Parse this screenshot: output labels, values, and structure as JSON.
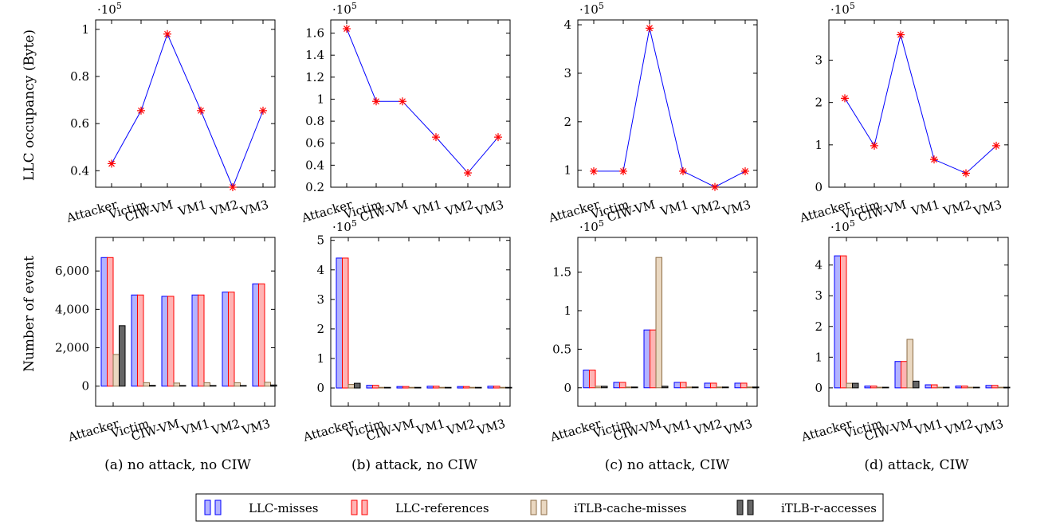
{
  "figure": {
    "ylabel_top": "LLC occupancy (Byte)",
    "ylabel_bottom": "Number of event",
    "panels": [
      {
        "caption": "(a) no attack, no CIW"
      },
      {
        "caption": "(b) attack, no CIW"
      },
      {
        "caption": "(c) no attack, CIW"
      },
      {
        "caption": "(d) attack, CIW"
      }
    ],
    "legend": [
      {
        "label": "LLC-misses",
        "fill": "#b3b3ff",
        "stroke": "#0000ff"
      },
      {
        "label": "LLC-references",
        "fill": "#ffb3b3",
        "stroke": "#ff0000"
      },
      {
        "label": "iTLB-cache-misses",
        "fill": "#ead8c1",
        "stroke": "#8c6d46"
      },
      {
        "label": "iTLB-r-accesses",
        "fill": "#666666",
        "stroke": "#000000"
      }
    ]
  },
  "chart_data": [
    {
      "type": "line",
      "panel": 0,
      "row": "top",
      "categories": [
        "Attacker",
        "Victim",
        "CIW-VM",
        "VM1",
        "VM2",
        "VM3"
      ],
      "values": [
        0.43,
        0.655,
        0.98,
        0.655,
        0.33,
        0.655
      ],
      "multiplier": "·10",
      "multiplier_exp": "5",
      "ylim": [
        0.33,
        1.04
      ],
      "yticks": [
        0.4,
        0.6,
        0.8,
        1
      ],
      "yticklabels": [
        "0.4",
        "0.6",
        "0.8",
        "1"
      ],
      "line_color": "#0000ff",
      "marker_color": "#ff0000"
    },
    {
      "type": "line",
      "panel": 1,
      "row": "top",
      "categories": [
        "Attacker",
        "Victim",
        "CIW-VM",
        "VM1",
        "VM2",
        "VM3"
      ],
      "values": [
        1.64,
        0.98,
        0.98,
        0.655,
        0.33,
        0.655
      ],
      "multiplier": "·10",
      "multiplier_exp": "5",
      "ylim": [
        0.2,
        1.72
      ],
      "yticks": [
        0.2,
        0.4,
        0.6,
        0.8,
        1,
        1.2,
        1.4,
        1.6
      ],
      "yticklabels": [
        "0.2",
        "0.4",
        "0.6",
        "0.8",
        "1",
        "1.2",
        "1.4",
        "1.6"
      ],
      "line_color": "#0000ff",
      "marker_color": "#ff0000"
    },
    {
      "type": "line",
      "panel": 2,
      "row": "top",
      "categories": [
        "Attacker",
        "Victim",
        "CIW-VM",
        "VM1",
        "VM2",
        "VM3"
      ],
      "values": [
        0.98,
        0.98,
        3.93,
        0.98,
        0.655,
        0.98
      ],
      "multiplier": "·10",
      "multiplier_exp": "5",
      "ylim": [
        0.65,
        4.1
      ],
      "yticks": [
        1,
        2,
        3,
        4
      ],
      "yticklabels": [
        "1",
        "2",
        "3",
        "4"
      ],
      "line_color": "#0000ff",
      "marker_color": "#ff0000"
    },
    {
      "type": "line",
      "panel": 3,
      "row": "top",
      "categories": [
        "Attacker",
        "Victim",
        "CIW-VM",
        "VM1",
        "VM2",
        "VM3"
      ],
      "values": [
        2.1,
        0.98,
        3.6,
        0.655,
        0.33,
        0.98
      ],
      "multiplier": "·10",
      "multiplier_exp": "5",
      "ylim": [
        0,
        3.95
      ],
      "yticks": [
        0,
        1,
        2,
        3
      ],
      "yticklabels": [
        "0",
        "1",
        "2",
        "3"
      ],
      "line_color": "#0000ff",
      "marker_color": "#ff0000"
    },
    {
      "type": "bar",
      "panel": 0,
      "row": "bottom",
      "categories": [
        "Attacker",
        "Victim",
        "CIW-VM",
        "VM1",
        "VM2",
        "VM3"
      ],
      "series": [
        {
          "name": "LLC-misses",
          "values": [
            6700,
            4750,
            4680,
            4750,
            4900,
            5330
          ]
        },
        {
          "name": "LLC-references",
          "values": [
            6700,
            4750,
            4680,
            4750,
            4900,
            5330
          ]
        },
        {
          "name": "iTLB-cache-misses",
          "values": [
            1650,
            180,
            160,
            180,
            180,
            200
          ]
        },
        {
          "name": "iTLB-r-accesses",
          "values": [
            3150,
            40,
            20,
            25,
            25,
            60
          ]
        }
      ],
      "multiplier": "",
      "multiplier_exp": "",
      "ylim": [
        -1050,
        7750
      ],
      "yticks": [
        0,
        2000,
        4000,
        6000
      ],
      "yticklabels": [
        "0",
        "2,000",
        "4,000",
        "6,000"
      ]
    },
    {
      "type": "bar",
      "panel": 1,
      "row": "bottom",
      "categories": [
        "Attacker",
        "Victim",
        "CIW-VM",
        "VM1",
        "VM2",
        "VM3"
      ],
      "series": [
        {
          "name": "LLC-misses",
          "values": [
            4.4,
            0.09,
            0.05,
            0.06,
            0.05,
            0.06
          ]
        },
        {
          "name": "LLC-references",
          "values": [
            4.4,
            0.09,
            0.05,
            0.06,
            0.05,
            0.06
          ]
        },
        {
          "name": "iTLB-cache-misses",
          "values": [
            0.12,
            0.01,
            0.01,
            0.01,
            0.01,
            0.01
          ]
        },
        {
          "name": "iTLB-r-accesses",
          "values": [
            0.16,
            0.01,
            0.01,
            0.01,
            0.01,
            0.01
          ]
        }
      ],
      "multiplier": "·10",
      "multiplier_exp": "5",
      "ylim": [
        -0.62,
        5.1
      ],
      "yticks": [
        0,
        1,
        2,
        3,
        4,
        5
      ],
      "yticklabels": [
        "0",
        "1",
        "2",
        "3",
        "4",
        "5"
      ]
    },
    {
      "type": "bar",
      "panel": 2,
      "row": "bottom",
      "categories": [
        "Attacker",
        "Victim",
        "CIW-VM",
        "VM1",
        "VM2",
        "VM3"
      ],
      "series": [
        {
          "name": "LLC-misses",
          "values": [
            0.23,
            0.07,
            0.75,
            0.07,
            0.06,
            0.06
          ]
        },
        {
          "name": "LLC-references",
          "values": [
            0.23,
            0.07,
            0.75,
            0.07,
            0.06,
            0.06
          ]
        },
        {
          "name": "iTLB-cache-misses",
          "values": [
            0.02,
            0.01,
            1.69,
            0.01,
            0.01,
            0.01
          ]
        },
        {
          "name": "iTLB-r-accesses",
          "values": [
            0.02,
            0.01,
            0.02,
            0.01,
            0.01,
            0.01
          ]
        }
      ],
      "multiplier": "·10",
      "multiplier_exp": "5",
      "ylim": [
        -0.24,
        1.95
      ],
      "yticks": [
        0,
        0.5,
        1,
        1.5
      ],
      "yticklabels": [
        "0",
        "0.5",
        "1",
        "1.5"
      ]
    },
    {
      "type": "bar",
      "panel": 3,
      "row": "bottom",
      "categories": [
        "Attacker",
        "Victim",
        "CIW-VM",
        "VM1",
        "VM2",
        "VM3"
      ],
      "series": [
        {
          "name": "LLC-misses",
          "values": [
            4.3,
            0.06,
            0.86,
            0.1,
            0.06,
            0.08
          ]
        },
        {
          "name": "LLC-references",
          "values": [
            4.3,
            0.06,
            0.86,
            0.1,
            0.06,
            0.08
          ]
        },
        {
          "name": "iTLB-cache-misses",
          "values": [
            0.15,
            0.01,
            1.58,
            0.01,
            0.01,
            0.01
          ]
        },
        {
          "name": "iTLB-r-accesses",
          "values": [
            0.15,
            0.01,
            0.22,
            0.01,
            0.01,
            0.01
          ]
        }
      ],
      "multiplier": "·10",
      "multiplier_exp": "5",
      "ylim": [
        -0.6,
        4.9
      ],
      "yticks": [
        0,
        1,
        2,
        3,
        4
      ],
      "yticklabels": [
        "0",
        "1",
        "2",
        "3",
        "4"
      ]
    }
  ]
}
